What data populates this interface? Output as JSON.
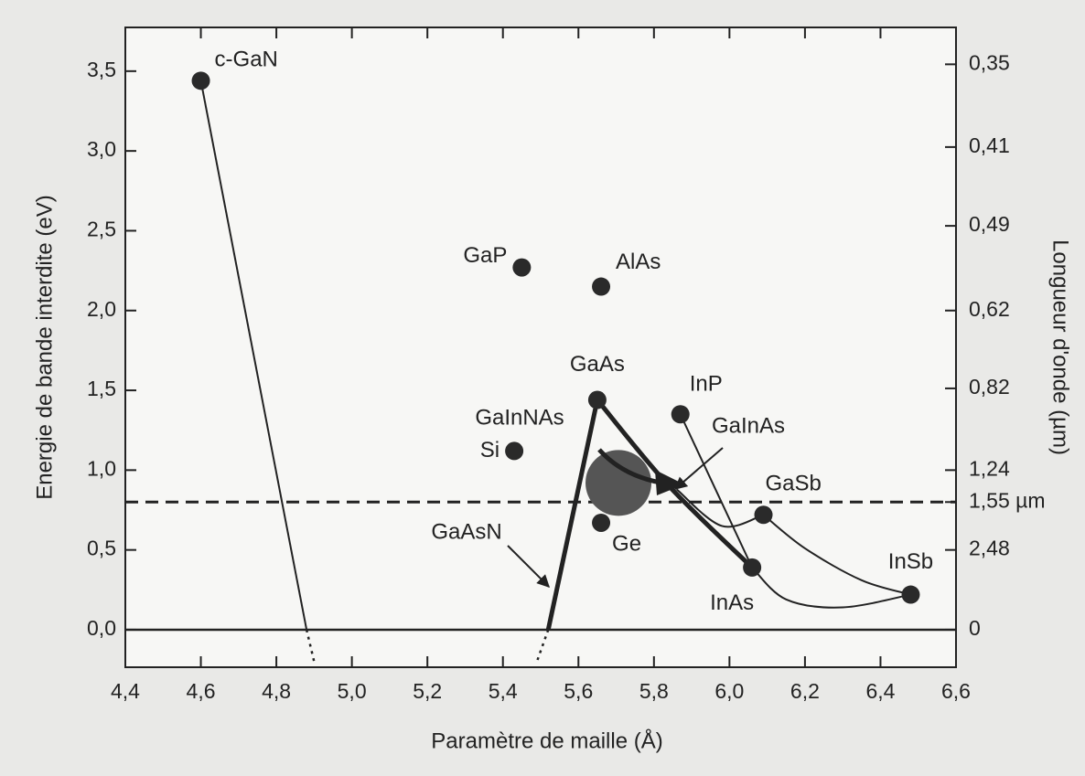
{
  "chart_data": {
    "type": "scatter",
    "xlabel": "Paramètre de maille (Å)",
    "ylabel": "Energie de bande interdite (eV)",
    "y2label": "Longueur d'onde (µm)",
    "xlim": [
      4.4,
      6.6
    ],
    "ylim": [
      -0.235,
      3.774
    ],
    "xticks": [
      {
        "value": 4.4,
        "label": "4,4"
      },
      {
        "value": 4.6,
        "label": "4,6"
      },
      {
        "value": 4.8,
        "label": "4,8"
      },
      {
        "value": 5.0,
        "label": "5,0"
      },
      {
        "value": 5.2,
        "label": "5,2"
      },
      {
        "value": 5.4,
        "label": "5,4"
      },
      {
        "value": 5.6,
        "label": "5,6"
      },
      {
        "value": 5.8,
        "label": "5,8"
      },
      {
        "value": 6.0,
        "label": "6,0"
      },
      {
        "value": 6.2,
        "label": "6,2"
      },
      {
        "value": 6.4,
        "label": "6,4"
      },
      {
        "value": 6.6,
        "label": "6,6"
      }
    ],
    "yticks": [
      {
        "value": 0.0,
        "label": "0,0"
      },
      {
        "value": 0.5,
        "label": "0,5"
      },
      {
        "value": 1.0,
        "label": "1,0"
      },
      {
        "value": 1.5,
        "label": "1,5"
      },
      {
        "value": 2.0,
        "label": "2,0"
      },
      {
        "value": 2.5,
        "label": "2,5"
      },
      {
        "value": 3.0,
        "label": "3,0"
      },
      {
        "value": 3.5,
        "label": "3,5"
      }
    ],
    "y2ticks": [
      {
        "value": 0.35,
        "label": "0,35"
      },
      {
        "value": 0.41,
        "label": "0,41"
      },
      {
        "value": 0.49,
        "label": "0,49"
      },
      {
        "value": 0.62,
        "label": "0,62"
      },
      {
        "value": 0.82,
        "label": "0,82"
      },
      {
        "value": 1.24,
        "label": "1,24"
      },
      {
        "value": 1.55,
        "label": "1,55 µm"
      },
      {
        "value": 2.48,
        "label": "2,48"
      },
      0
    ],
    "color": "#2a2a2a",
    "labels": [
      "c-GaN",
      "GaP",
      "AlAs",
      "GaAs",
      "InP",
      "Si",
      "Ge",
      "GaSb",
      "InAs",
      "InSb"
    ],
    "x": [
      4.6,
      5.45,
      5.66,
      5.65,
      5.87,
      5.43,
      5.66,
      6.09,
      6.06,
      6.48
    ],
    "y": [
      3.44,
      2.27,
      2.15,
      1.44,
      1.35,
      1.12,
      0.67,
      0.72,
      0.39,
      0.22
    ],
    "region": {
      "label": "GaInNAs",
      "x": 5.706,
      "y": 0.92,
      "color": "#555555"
    },
    "reference_line": 0.8,
    "curves": [
      {
        "style": "thin",
        "x": [
          4.6,
          4.88
        ],
        "y": [
          3.44,
          0
        ]
      },
      {
        "style": "dotted",
        "x": [
          4.88,
          4.9
        ],
        "y": [
          0,
          -0.2
        ]
      },
      {
        "style": "thick",
        "x": [
          5.65,
          5.52
        ],
        "y": [
          1.44,
          0
        ]
      },
      {
        "style": "dotted",
        "x": [
          5.52,
          5.49
        ],
        "y": [
          0,
          -0.2
        ]
      },
      {
        "style": "thick",
        "x": [
          5.65,
          5.84,
          6.06
        ],
        "y": [
          1.44,
          0.9,
          0.39
        ]
      },
      {
        "style": "thin",
        "x": [
          5.87,
          6.06
        ],
        "y": [
          1.35,
          0.39
        ]
      },
      {
        "style": "thin",
        "x": [
          5.86,
          5.98,
          6.09
        ],
        "y": [
          0.88,
          0.65,
          0.72
        ]
      },
      {
        "style": "thin",
        "x": [
          6.09,
          6.2,
          6.35,
          6.48
        ],
        "y": [
          0.72,
          0.51,
          0.31,
          0.22
        ]
      },
      {
        "style": "thin",
        "x": [
          6.06,
          6.15,
          6.3,
          6.48
        ],
        "y": [
          0.39,
          0.19,
          0.14,
          0.22
        ]
      }
    ],
    "annotations": [
      "GaAsN",
      "GaInAs"
    ]
  }
}
